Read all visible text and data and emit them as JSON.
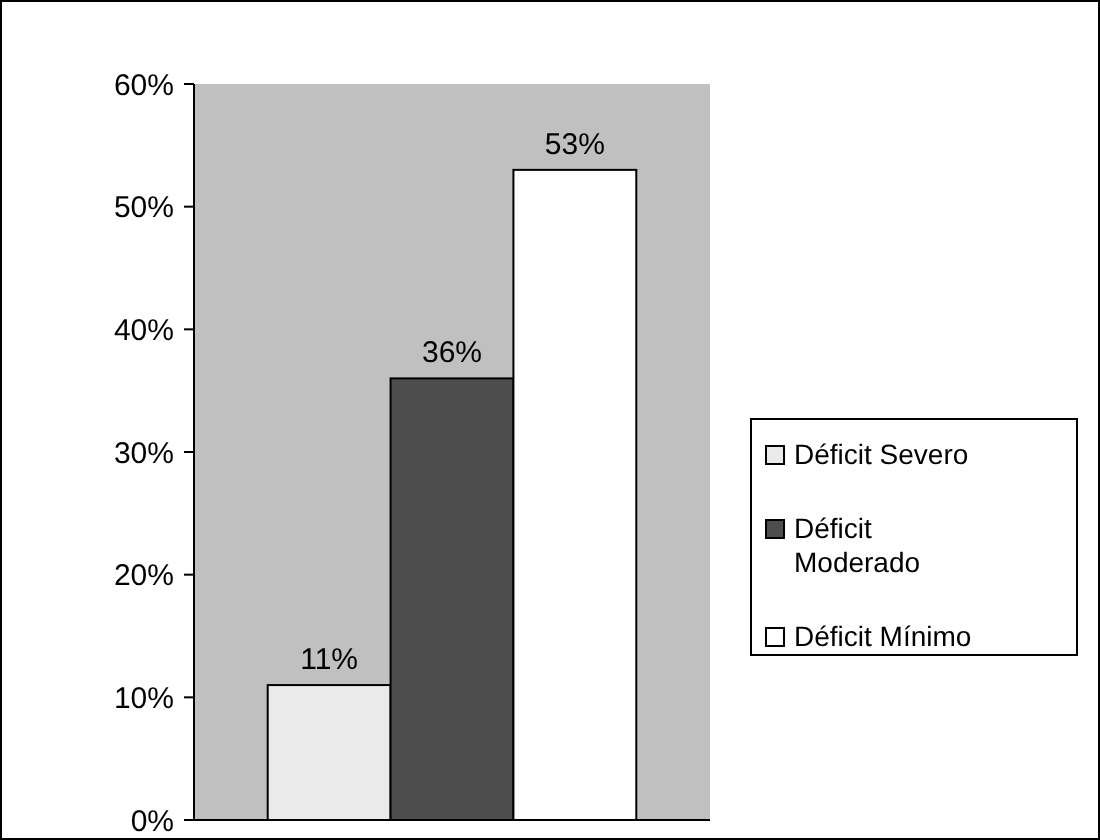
{
  "chart_data": {
    "type": "bar",
    "categories": [
      null
    ],
    "series": [
      {
        "name": "Déficit Severo",
        "color": "#eaeaea",
        "values": [
          11
        ],
        "value_labels": [
          "11%"
        ]
      },
      {
        "name": "Déficit Moderado",
        "color": "#4d4d4d",
        "values": [
          36
        ],
        "value_labels": [
          "36%"
        ]
      },
      {
        "name": "Déficit Mínimo",
        "color": "#ffffff",
        "values": [
          53
        ],
        "value_labels": [
          "53%"
        ]
      }
    ],
    "ylim": [
      0,
      60
    ],
    "yticks": [
      {
        "value": 0,
        "label": "0%"
      },
      {
        "value": 10,
        "label": "10%"
      },
      {
        "value": 20,
        "label": "20%"
      },
      {
        "value": 30,
        "label": "30%"
      },
      {
        "value": 40,
        "label": "40%"
      },
      {
        "value": 50,
        "label": "50%"
      },
      {
        "value": 60,
        "label": "60%"
      }
    ],
    "legend": "right",
    "grid": false
  }
}
